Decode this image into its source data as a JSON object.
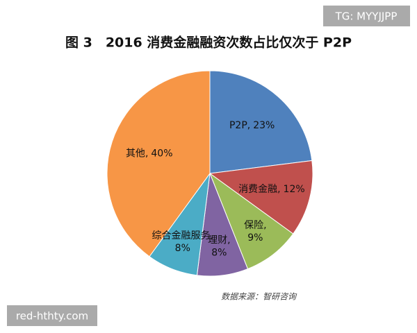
{
  "chart_data": {
    "type": "pie",
    "title": "图 3　2016 消费金融融资次数占比仅次于 P2P",
    "categories": [
      "P2P",
      "消费金融",
      "保险",
      "理财",
      "综合金融服务",
      "其他"
    ],
    "values": [
      23,
      12,
      9,
      8,
      8,
      40
    ],
    "value_labels": [
      "23%",
      "12%",
      "9%",
      "8%",
      "8%",
      "40%"
    ],
    "label_separator": ",",
    "colors": [
      "#4f81bd",
      "#c0504d",
      "#9bbb59",
      "#8064a2",
      "#4bacc6",
      "#f79646"
    ],
    "source": "数据来源：智研咨询"
  },
  "watermarks": {
    "top": "TG: MYYJJPP",
    "bottom": "red-hthty.com"
  }
}
